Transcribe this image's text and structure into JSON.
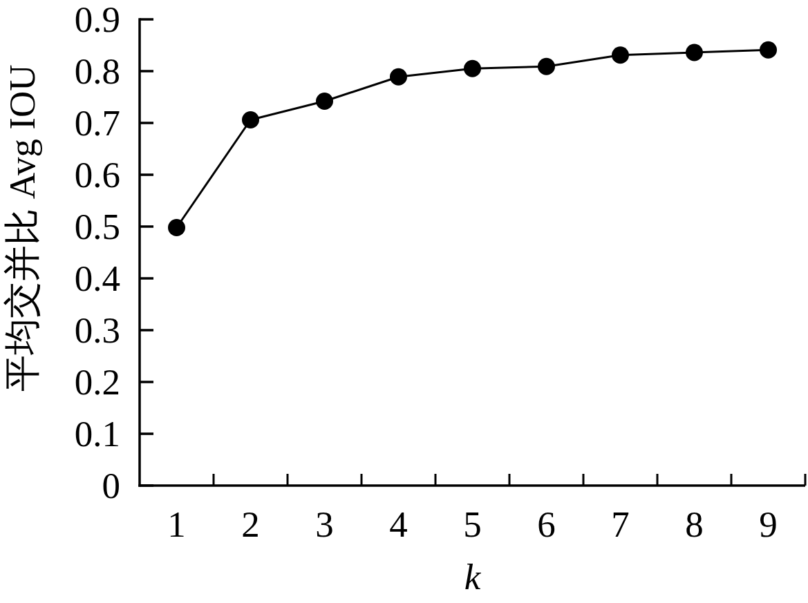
{
  "chart_data": {
    "type": "line",
    "xlabel": "k",
    "ylabel": "平均交并比 Avg IOU",
    "categories": [
      "1",
      "2",
      "3",
      "4",
      "5",
      "6",
      "7",
      "8",
      "9"
    ],
    "series": [
      {
        "color": "#000000",
        "values": [
          0.498,
          0.706,
          0.742,
          0.789,
          0.805,
          0.809,
          0.831,
          0.836,
          0.841
        ]
      }
    ],
    "ylim": [
      0,
      0.9
    ],
    "yticks": [
      0,
      0.1,
      0.2,
      0.3,
      0.4,
      0.5,
      0.6,
      0.7,
      0.8,
      0.9
    ],
    "marker": "circle",
    "line_style": "solid"
  }
}
